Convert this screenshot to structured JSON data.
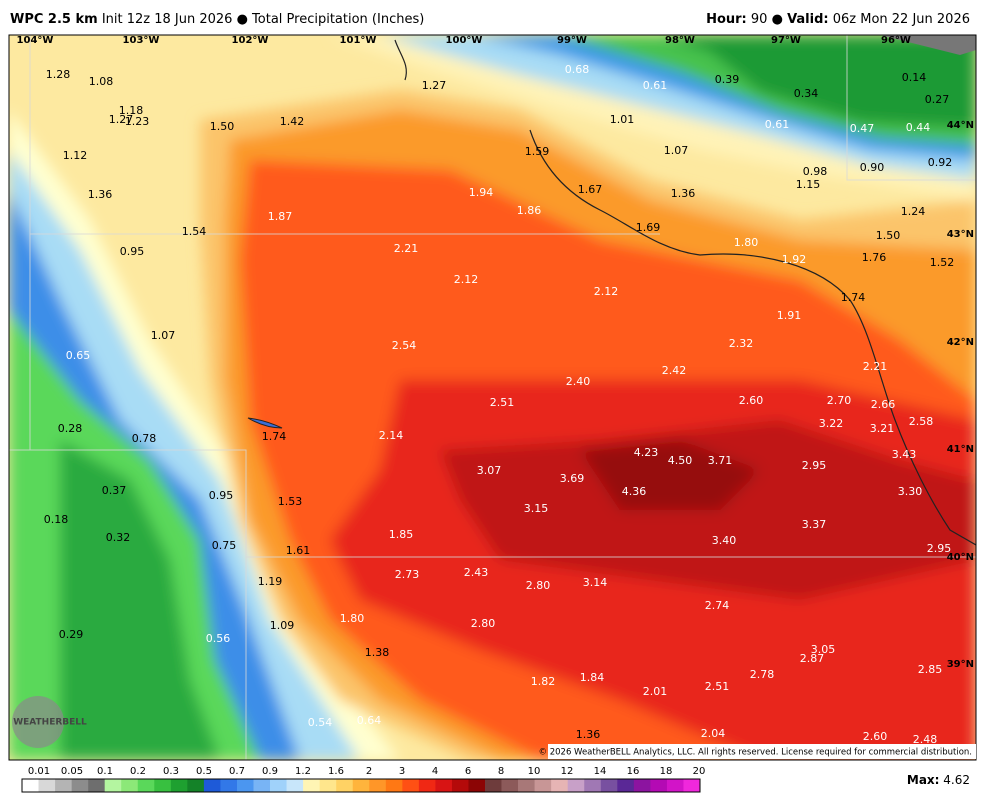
{
  "header": {
    "model": "WPC 2.5 km",
    "init": "Init 12z 18 Jun 2026 ● Total Precipitation (Inches)",
    "hour_label": "Hour:",
    "hour": "90",
    "sep": "●",
    "valid_label": "Valid:",
    "valid": "06z Mon 22 Jun 2026"
  },
  "map": {
    "lon_labels": [
      "104°W",
      "103°W",
      "102°W",
      "101°W",
      "100°W",
      "99°W",
      "98°W",
      "97°W",
      "96°W"
    ],
    "lat_labels": [
      "44°N",
      "43°N",
      "42°N",
      "41°N",
      "40°N",
      "39°N"
    ],
    "values": [
      "1.28",
      "1.08",
      "1.18",
      "1.27",
      "1.23",
      "1.50",
      "1.42",
      "1.27",
      "0.68",
      "0.61",
      "0.39",
      "0.34",
      "0.14",
      "0.27",
      "0.47",
      "0.44",
      "0.61",
      "1.01",
      "1.07",
      "1.59",
      "0.98",
      "0.90",
      "0.92",
      "1.15",
      "1.12",
      "1.36",
      "1.94",
      "1.67",
      "1.36",
      "1.87",
      "1.86",
      "1.54",
      "1.69",
      "1.24",
      "1.50",
      "1.80",
      "0.95",
      "2.21",
      "1.92",
      "1.76",
      "1.52",
      "2.12",
      "2.12",
      "1.74",
      "1.91",
      "1.07",
      "2.54",
      "2.32",
      "0.65",
      "2.21",
      "2.42",
      "2.40",
      "2.60",
      "2.70",
      "2.66",
      "2.51",
      "2.58",
      "3.22",
      "3.21",
      "0.28",
      "0.78",
      "1.74",
      "2.14",
      "4.23",
      "4.50",
      "3.71",
      "3.43",
      "3.07",
      "3.69",
      "2.95",
      "0.37",
      "4.36",
      "3.30",
      "0.95",
      "1.53",
      "3.15",
      "0.18",
      "3.37",
      "0.32",
      "1.85",
      "3.40",
      "0.75",
      "1.61",
      "2.95",
      "2.73",
      "2.43",
      "2.80",
      "3.14",
      "1.19",
      "2.74",
      "1.80",
      "1.09",
      "2.80",
      "0.56",
      "0.29",
      "3.05",
      "2.87",
      "1.38",
      "2.78",
      "2.85",
      "1.84",
      "1.82",
      "2.51",
      "2.01",
      "0.54",
      "0.64",
      "2.04",
      "1.36",
      "2.60",
      "2.48"
    ],
    "logo": "WEATHERBELL",
    "copyright": "© 2026 WeatherBELL Analytics, LLC. All rights reserved. License required for commercial distribution."
  },
  "legend": {
    "labels": [
      "0.01",
      "0.05",
      "0.1",
      "0.2",
      "0.3",
      "0.5",
      "0.7",
      "0.9",
      "1.2",
      "1.6",
      "2",
      "3",
      "4",
      "6",
      "8",
      "10",
      "12",
      "14",
      "16",
      "18",
      "20"
    ]
  },
  "footer": {
    "max_label": "Max:",
    "max_value": "4.62"
  }
}
